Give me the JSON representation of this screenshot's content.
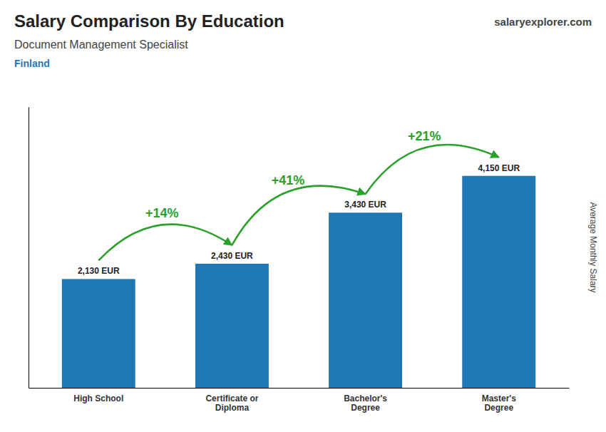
{
  "chart_data": {
    "type": "bar",
    "title": "Salary Comparison By Education",
    "subtitle": "Document Management Specialist",
    "annotations": [
      "Finland",
      "salaryexplorer.com"
    ],
    "ylabel": "Average Monthly Salary",
    "categories": [
      "High School",
      "Certificate or\nDiploma",
      "Bachelor's\nDegree",
      "Master's\nDegree"
    ],
    "values": [
      2130,
      2430,
      3430,
      4150
    ],
    "data_labels": true,
    "value_labels": [
      "2,130 EUR",
      "2,430 EUR",
      "3,430 EUR",
      "4,150 EUR"
    ],
    "pct_changes": [
      "+14%",
      "+41%",
      "+21%"
    ],
    "ylim": [
      0,
      5500
    ],
    "tick_labels": "x"
  }
}
